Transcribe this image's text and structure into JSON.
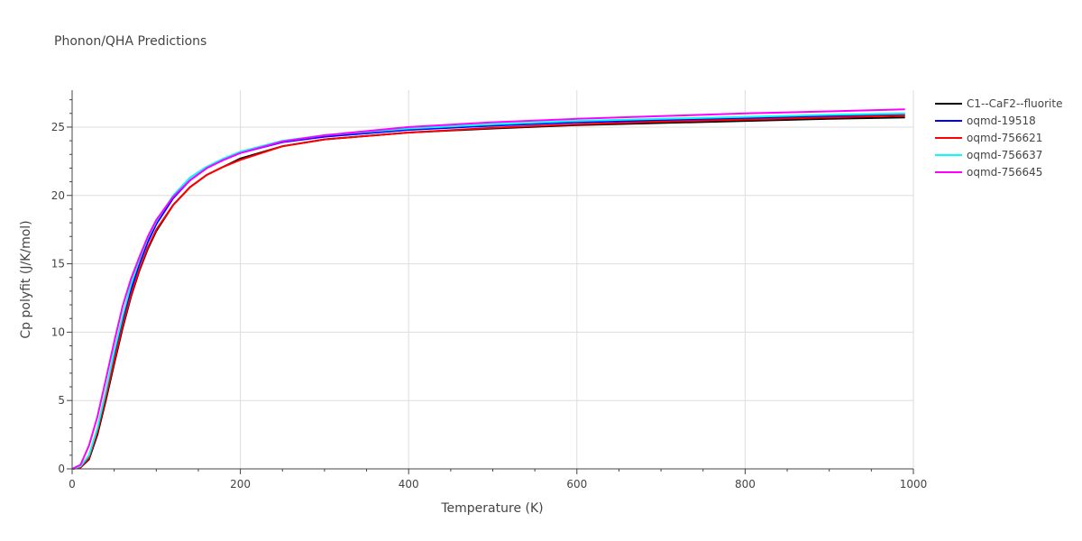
{
  "chart_data": {
    "type": "line",
    "title": "Phonon/QHA Predictions",
    "xlabel": "Temperature (K)",
    "ylabel": "Cp polyfit (J/K/mol)",
    "xlim": [
      0,
      1000
    ],
    "ylim": [
      0,
      27.7
    ],
    "xticks": [
      0,
      200,
      400,
      600,
      800,
      1000
    ],
    "xtick_labels": [
      "0",
      "200",
      "400",
      "600",
      "800",
      "1000"
    ],
    "yticks": [
      0,
      5,
      10,
      15,
      20,
      25
    ],
    "ytick_labels": [
      "0",
      "5",
      "10",
      "15",
      "20",
      "25"
    ],
    "grid": true,
    "legend_position": "right",
    "series": [
      {
        "name": "C1--CaF2--fluorite",
        "color": "#000000",
        "x": [
          0,
          10,
          20,
          30,
          40,
          50,
          60,
          70,
          80,
          90,
          100,
          120,
          140,
          160,
          180,
          200,
          250,
          300,
          400,
          500,
          600,
          700,
          800,
          900,
          990
        ],
        "y": [
          0,
          0.1,
          0.7,
          2.5,
          5.0,
          7.7,
          10.3,
          12.6,
          14.5,
          16.1,
          17.4,
          19.3,
          20.6,
          21.5,
          22.1,
          22.7,
          23.6,
          24.1,
          24.6,
          24.9,
          25.15,
          25.3,
          25.45,
          25.6,
          25.7
        ]
      },
      {
        "name": "oqmd-19518",
        "color": "#0000ff",
        "x": [
          0,
          10,
          20,
          30,
          40,
          50,
          60,
          70,
          80,
          90,
          100,
          120,
          140,
          160,
          180,
          200,
          250,
          300,
          400,
          500,
          600,
          700,
          800,
          900,
          990
        ],
        "y": [
          0,
          0.1,
          0.8,
          2.7,
          5.3,
          8.1,
          10.8,
          13.1,
          15.0,
          16.6,
          17.9,
          19.8,
          21.1,
          22.0,
          22.6,
          23.1,
          23.9,
          24.3,
          24.8,
          25.1,
          25.35,
          25.5,
          25.65,
          25.8,
          25.9
        ]
      },
      {
        "name": "oqmd-756621",
        "color": "#ff0000",
        "x": [
          0,
          10,
          20,
          30,
          40,
          50,
          60,
          70,
          80,
          90,
          100,
          120,
          140,
          160,
          180,
          200,
          250,
          300,
          400,
          500,
          600,
          700,
          800,
          900,
          990
        ],
        "y": [
          0,
          0.1,
          0.8,
          2.7,
          5.2,
          7.9,
          10.5,
          12.7,
          14.6,
          16.2,
          17.5,
          19.3,
          20.6,
          21.5,
          22.1,
          22.6,
          23.6,
          24.1,
          24.6,
          24.95,
          25.2,
          25.4,
          25.55,
          25.7,
          25.85
        ]
      },
      {
        "name": "oqmd-756637",
        "color": "#00ffff",
        "x": [
          0,
          10,
          20,
          30,
          40,
          50,
          60,
          70,
          80,
          90,
          100,
          120,
          140,
          160,
          180,
          200,
          250,
          300,
          400,
          500,
          600,
          700,
          800,
          900,
          990
        ],
        "y": [
          0,
          0.2,
          1.0,
          3.0,
          5.7,
          8.6,
          11.2,
          13.5,
          15.3,
          16.9,
          18.1,
          20.0,
          21.3,
          22.1,
          22.7,
          23.2,
          24.0,
          24.4,
          24.9,
          25.2,
          25.45,
          25.6,
          25.75,
          25.9,
          26.0
        ]
      },
      {
        "name": "oqmd-756645",
        "color": "#ff00ff",
        "x": [
          0,
          10,
          20,
          30,
          40,
          50,
          60,
          70,
          80,
          90,
          100,
          120,
          140,
          160,
          180,
          200,
          250,
          300,
          400,
          500,
          600,
          700,
          800,
          900,
          990
        ],
        "y": [
          0,
          0.3,
          1.7,
          3.8,
          6.5,
          9.3,
          11.9,
          13.9,
          15.5,
          17.0,
          18.2,
          19.9,
          21.1,
          22.0,
          22.6,
          23.1,
          23.95,
          24.4,
          25.0,
          25.35,
          25.6,
          25.8,
          26.0,
          26.15,
          26.3
        ]
      }
    ]
  }
}
